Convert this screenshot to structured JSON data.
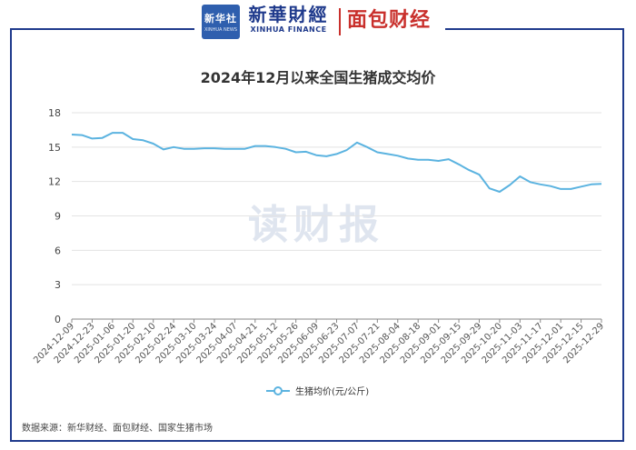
{
  "header": {
    "xinhua_logo_cn": "新华社",
    "xinhua_logo_en": "XINHUA NEWS",
    "brand_cn": "新華財經",
    "brand_en": "XINHUA FINANCE",
    "brand2": "面包财经"
  },
  "watermark": "读财报",
  "source": "数据来源：新华财经、面包财经、国家生猪市场",
  "colors": {
    "line": "#5bb3e0",
    "frame": "#1f3a8c",
    "accent_red": "#c9302c",
    "grid": "#e3e3e3"
  },
  "chart_data": {
    "type": "line",
    "title": "2024年12月以来全国生猪成交均价",
    "legend": "生猪均价(元/公斤)",
    "ylim": [
      0,
      18
    ],
    "yticks": [
      0,
      3,
      6,
      9,
      12,
      15,
      18
    ],
    "grid": true,
    "legend_position": "bottom",
    "x_tick_labels": [
      "2024-12-09",
      "2024-12-23",
      "2025-01-06",
      "2025-01-20",
      "2025-02-10",
      "2025-02-24",
      "2025-03-10",
      "2025-03-24",
      "2025-04-07",
      "2025-04-21",
      "2025-05-12",
      "2025-05-26",
      "2025-06-09",
      "2025-06-23",
      "2025-07-07",
      "2025-07-21",
      "2025-08-04",
      "2025-08-18",
      "2025-09-01",
      "2025-09-15",
      "2025-09-29",
      "2025-10-20",
      "2025-11-03",
      "2025-11-17",
      "2025-12-01",
      "2025-12-15",
      "2025-12-29"
    ],
    "series": [
      {
        "name": "生猪均价(元/公斤)",
        "values": [
          16.1,
          16.05,
          15.75,
          15.8,
          16.25,
          16.25,
          15.7,
          15.6,
          15.3,
          14.8,
          15.0,
          14.85,
          14.85,
          14.9,
          14.9,
          14.85,
          14.85,
          14.85,
          15.1,
          15.1,
          15.0,
          14.85,
          14.55,
          14.6,
          14.3,
          14.2,
          14.4,
          14.75,
          15.4,
          15.0,
          14.55,
          14.4,
          14.25,
          14.0,
          13.9,
          13.9,
          13.8,
          13.95,
          13.5,
          13.0,
          12.6,
          11.4,
          11.1,
          11.7,
          12.45,
          11.95,
          11.75,
          11.6,
          11.35,
          11.35,
          11.55,
          11.75,
          11.8
        ]
      }
    ]
  }
}
